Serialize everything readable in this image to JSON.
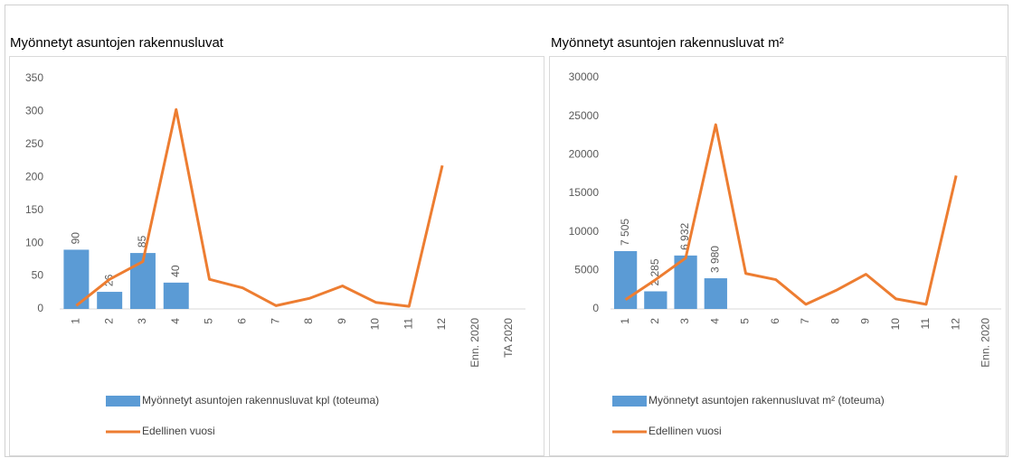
{
  "chart_data": [
    {
      "type": "bar",
      "title": "Myönnetyt asuntojen rakennusluvat",
      "categories": [
        "1",
        "2",
        "3",
        "4",
        "5",
        "6",
        "7",
        "8",
        "9",
        "10",
        "11",
        "12",
        "Enn. 2020",
        "TA 2020"
      ],
      "series": [
        {
          "name": "Myönnetyt asuntojen rakennusluvat kpl (toteuma)",
          "type": "bar",
          "color": "#5b9bd5",
          "values": [
            90,
            26,
            85,
            40,
            null,
            null,
            null,
            null,
            null,
            null,
            null,
            null,
            null,
            null
          ]
        },
        {
          "name": "Edellinen vuosi",
          "type": "line",
          "color": "#ed7d31",
          "values": [
            5,
            45,
            72,
            303,
            45,
            32,
            5,
            16,
            35,
            10,
            4,
            218,
            null,
            null
          ]
        }
      ],
      "ylim": [
        0,
        350
      ],
      "yticks": [
        0,
        50,
        100,
        150,
        200,
        250,
        300,
        350
      ],
      "grid": false,
      "legend": "bottom"
    },
    {
      "type": "bar",
      "title": "Myönnetyt asuntojen rakennusluvat m²",
      "categories": [
        "1",
        "2",
        "3",
        "4",
        "5",
        "6",
        "7",
        "8",
        "9",
        "10",
        "11",
        "12",
        "Enn. 2020"
      ],
      "series": [
        {
          "name": "Myönnetyt asuntojen rakennusluvat m² (toteuma)",
          "type": "bar",
          "color": "#5b9bd5",
          "values": [
            7505,
            2285,
            6932,
            3980,
            null,
            null,
            null,
            null,
            null,
            null,
            null,
            null,
            null
          ],
          "value_labels": [
            "7 505",
            "2 285",
            "6 932",
            "3 980",
            null,
            null,
            null,
            null,
            null,
            null,
            null,
            null,
            null
          ]
        },
        {
          "name": "Edellinen vuosi",
          "type": "line",
          "color": "#ed7d31",
          "values": [
            1200,
            3800,
            6600,
            23900,
            4600,
            3800,
            600,
            2400,
            4500,
            1300,
            600,
            17300,
            null
          ]
        }
      ],
      "ylim": [
        0,
        30000
      ],
      "yticks": [
        0,
        5000,
        10000,
        15000,
        20000,
        25000,
        30000
      ],
      "grid": false,
      "legend": "bottom"
    }
  ]
}
